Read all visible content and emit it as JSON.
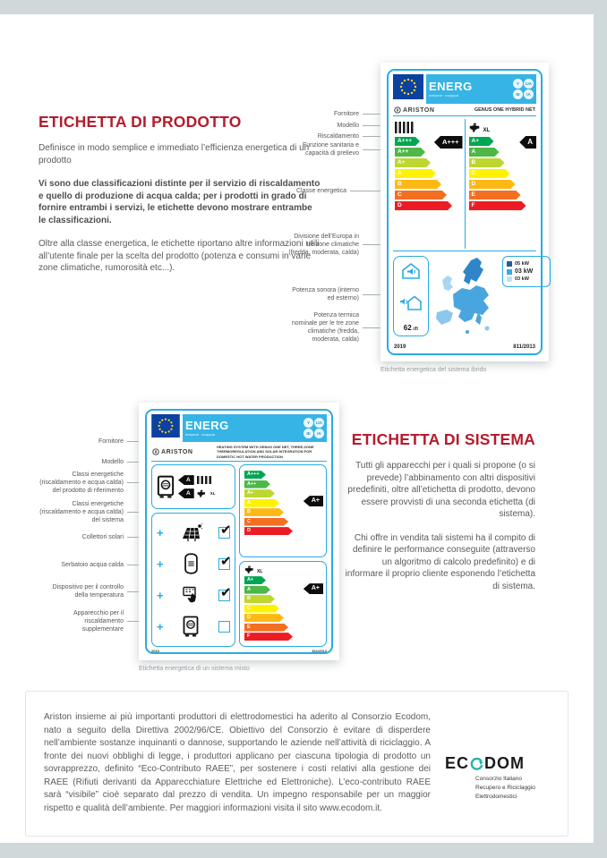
{
  "page": {
    "background": "#cfd9da",
    "accent_red": "#b41c2e",
    "label_blue": "#29abe2"
  },
  "product_section": {
    "title": "ETICHETTA DI PRODOTTO",
    "p1": "Definisce in modo semplice e immediato l’efficienza energetica di un prodotto",
    "p2": "Vi sono due classificazioni distinte per il servizio di riscaldamento e quello di produzione di acqua calda; per i prodotti in grado di fornire entrambi i servizi, le etichette devono mostrare entrambe le classificazioni.",
    "p3": "Oltre alla classe energetica, le etichette riportano altre informazioni utili all’utente finale per la scelta del prodotto (potenza e consumi in varie zone climatiche, rumorosità etc...)."
  },
  "system_section": {
    "title": "ETICHETTA DI SISTEMA",
    "p1": "Tutti gli apparecchi per i quali si propone (o si prevede) l’abbinamento con altri dispositivi predefiniti, oltre all’etichetta di prodotto, devono essere provvisti di una seconda etichetta (di sistema).",
    "p2": "Chi offre in vendita tali sistemi ha il compito di definire le performance conseguite (attraverso un algoritmo di calcolo predefinito) e di informare il proprio cliente esponendo l’etichetta di sistema."
  },
  "label1": {
    "caption": "Etichetta energetica del sistema ibrido",
    "header": {
      "energ": "ENERG",
      "sub": "енергия · ενεργεια",
      "badges": [
        "Y",
        "IJA",
        "IE",
        "IA"
      ]
    },
    "brand": "ARISTON",
    "model": "GENUS ONE HYBRID NET",
    "heat_pointer": "A+++",
    "dhw_pointer": "A",
    "dhw_size": "XL",
    "heat_classes": [
      {
        "label": "A+++",
        "color": "#00a651"
      },
      {
        "label": "A++",
        "color": "#4db848"
      },
      {
        "label": "A+",
        "color": "#bed630"
      },
      {
        "label": "A",
        "color": "#fff200"
      },
      {
        "label": "B",
        "color": "#fdb913"
      },
      {
        "label": "C",
        "color": "#f36f21"
      },
      {
        "label": "D",
        "color": "#ed1c24"
      }
    ],
    "dhw_classes": [
      {
        "label": "A+",
        "color": "#00a651"
      },
      {
        "label": "A",
        "color": "#4db848"
      },
      {
        "label": "B",
        "color": "#bed630"
      },
      {
        "label": "C",
        "color": "#fff200"
      },
      {
        "label": "D",
        "color": "#fdb913"
      },
      {
        "label": "E",
        "color": "#f36f21"
      },
      {
        "label": "F",
        "color": "#ed1c24"
      }
    ],
    "sound_value": "62",
    "sound_unit": "dB",
    "kw_legend": [
      {
        "value": "05 kW",
        "color": "#24608f"
      },
      {
        "value": "03 kW",
        "color": "#3fa9dc"
      },
      {
        "value": "03 kW",
        "color": "#bfe3f5"
      }
    ],
    "year": "2019",
    "regulation": "811/2013",
    "callouts": [
      "Fornitore",
      "Modello",
      "Riscaldamento",
      "Funzione sanitaria e capacità di prelievo",
      "Classe energetica",
      "Divisione dell’Europa in tre zone climatiche (fredda, moderata, calda)",
      "Potenza sonora (interno ed esterno)",
      "Potenza termica nominale per le tre zone climatiche (fredda, moderata, calda)"
    ]
  },
  "label2": {
    "caption": "Etichetta energetica di un sistema misto",
    "header": {
      "energ": "ENERG",
      "sub": "енергия · ενεργεια",
      "badges": [
        "Y",
        "IJA",
        "IE",
        "IA"
      ]
    },
    "brand": "ARISTON",
    "description": "Heating system with Genus One Net, three-zone thermoregulation and solar integration for domestic hot water production",
    "plus": "+",
    "ref_heat_class": "A",
    "ref_dhw_class": "A",
    "dhw_size": "XL",
    "system_heat_pointer": "A+",
    "system_dhw_pointer": "A+",
    "heat_classes": [
      {
        "label": "A+++",
        "color": "#00a651"
      },
      {
        "label": "A++",
        "color": "#4db848"
      },
      {
        "label": "A+",
        "color": "#bed630"
      },
      {
        "label": "A",
        "color": "#fff200"
      },
      {
        "label": "B",
        "color": "#fdb913"
      },
      {
        "label": "C",
        "color": "#f36f21"
      },
      {
        "label": "D",
        "color": "#ed1c24"
      }
    ],
    "dhw_classes": [
      {
        "label": "A+",
        "color": "#00a651"
      },
      {
        "label": "A",
        "color": "#4db848"
      },
      {
        "label": "B",
        "color": "#bed630"
      },
      {
        "label": "C",
        "color": "#fff200"
      },
      {
        "label": "D",
        "color": "#fdb913"
      },
      {
        "label": "E",
        "color": "#f36f21"
      },
      {
        "label": "F",
        "color": "#ed1c24"
      }
    ],
    "components": [
      {
        "name": "Collettori solari",
        "checked": true
      },
      {
        "name": "Serbatoio acqua calda",
        "checked": true
      },
      {
        "name": "Dispositivo per il controllo della temperatura",
        "checked": true
      },
      {
        "name": "Apparecchio per il riscaldamento supplementare",
        "checked": false
      }
    ],
    "year": "2019",
    "regulation": "811/2013",
    "callouts": [
      "Fornitore",
      "Modello",
      "Classi energetiche (riscaldamento e acqua calda) del prodotto di riferimento",
      "Classi energetiche (riscaldamento e acqua calda) del sistema",
      "Collettori solari",
      "Serbatoio acqua calda",
      "Dispositivo per il controllo della temperatura",
      "Apparecchio per il riscaldamento supplementare"
    ]
  },
  "footer": {
    "text": "Ariston insieme ai più importanti produttori di elettrodomestici ha aderito al Consorzio Ecodom, nato a seguito della Direttiva 2002/96/CE. Obiettivo del Consorzio è evitare di disperdere nell’ambiente sostanze inquinanti o dannose, supportando le aziende nell’attività di riciclaggio. A fronte dei nuovi obblighi di legge, i produttori applicano per ciascuna tipologia di prodotto un sovrapprezzo, definito “Eco-Contributo RAEE”, per sostenere i costi relativi alla gestione dei RAEE (Rifiuti derivanti da Apparecchiature Elettriche ed Elettroniche). L’eco-contributo RAEE sarà “visibile” cioè separato dal prezzo di vendita. Un impegno responsabile per un maggior rispetto e qualità dell’ambiente. Per maggiori informazioni visita il sito www.ecodom.it.",
    "logo": {
      "pre": "EC",
      "post": "DOM",
      "tagline": [
        "Consorzio Italiano",
        "Recupero e Riciclaggio",
        "Elettrodomestici"
      ]
    }
  }
}
